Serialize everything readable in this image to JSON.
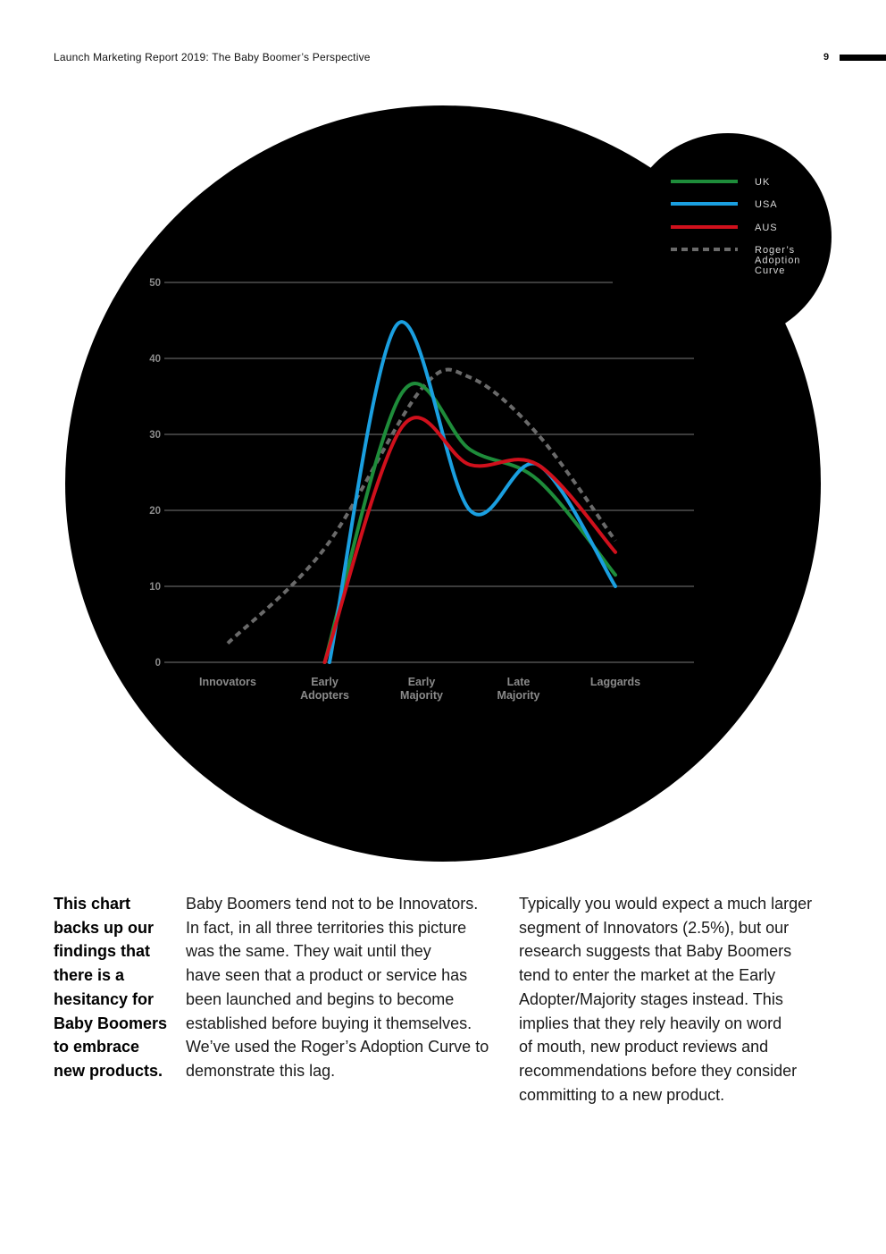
{
  "header": {
    "title": "Launch Marketing Report 2019: The Baby Boomer’s Perspective",
    "page_number": "9"
  },
  "colors": {
    "background_circle": "#000000",
    "grid": "#777777",
    "uk": "#1e8c3a",
    "usa": "#1a9fe0",
    "aus": "#d0101c",
    "rogers": "#6a6a6a"
  },
  "chart_data": {
    "type": "line",
    "title": "",
    "xlabel": "",
    "ylabel": "",
    "ylim": [
      0,
      50
    ],
    "yticks": [
      "0",
      "10",
      "20",
      "30",
      "40",
      "50"
    ],
    "categories": [
      [
        "Innovators"
      ],
      [
        "Early",
        "Adopters"
      ],
      [
        "Early",
        "Majority"
      ],
      [
        "Late",
        "Majority"
      ],
      [
        "Laggards"
      ]
    ],
    "legend_position": "top-right",
    "series": [
      {
        "name": "UK",
        "style": "solid",
        "color": "#1e8c3a",
        "points": [
          [
            1,
            0
          ],
          [
            1.8,
            35.5
          ],
          [
            2.5,
            28
          ],
          [
            3.2,
            24
          ],
          [
            4,
            11.5
          ]
        ]
      },
      {
        "name": "USA",
        "style": "solid",
        "color": "#1a9fe0",
        "points": [
          [
            1.05,
            0
          ],
          [
            1.75,
            44.5
          ],
          [
            2.5,
            20
          ],
          [
            3.2,
            26
          ],
          [
            4,
            10
          ]
        ]
      },
      {
        "name": "AUS",
        "style": "solid",
        "color": "#d0101c",
        "points": [
          [
            1,
            0
          ],
          [
            1.8,
            31
          ],
          [
            2.5,
            26
          ],
          [
            3.2,
            26
          ],
          [
            4,
            14.5
          ]
        ]
      },
      {
        "name": "Roger's Adoption Curve",
        "legend_lines": [
          "Roger’s",
          "Adoption",
          "Curve"
        ],
        "style": "dashed",
        "color": "#6a6a6a",
        "points": [
          [
            0,
            2.5
          ],
          [
            1,
            15
          ],
          [
            2,
            36
          ],
          [
            2.5,
            37.5
          ],
          [
            3.2,
            30
          ],
          [
            4,
            16
          ]
        ]
      }
    ]
  },
  "body": {
    "lead_lines": [
      "This chart",
      "backs up our",
      "findings that",
      "there is a",
      "hesitancy for",
      "Baby Boomers",
      "to embrace",
      "new products."
    ],
    "middle_lines": [
      "Baby Boomers tend not to be Innovators.",
      "In fact, in all three territories this picture",
      "was the same. They wait until they",
      "have seen that a product or service has",
      "been launched and begins to become",
      "established before buying it themselves.",
      "We’ve used the Roger’s Adoption Curve to",
      "demonstrate this lag."
    ],
    "right_lines": [
      "Typically you would expect a much larger",
      "segment of Innovators (2.5%), but our",
      "research suggests that Baby Boomers",
      "tend to enter the market at the Early",
      "Adopter/Majority stages instead. This",
      "implies that they rely heavily on word",
      "of mouth, new product reviews and",
      "recommendations before they consider",
      "committing to a new product."
    ]
  }
}
